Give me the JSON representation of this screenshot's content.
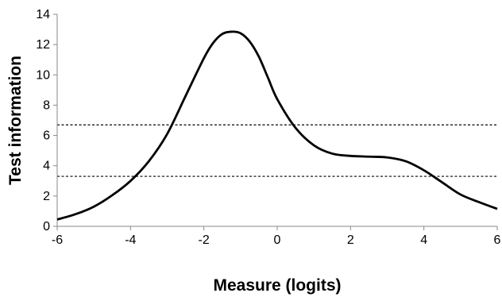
{
  "chart_data": {
    "type": "line",
    "title": "",
    "xlabel": "Measure (logits)",
    "ylabel": "Test information",
    "xlim": [
      -6,
      6
    ],
    "ylim": [
      0,
      14
    ],
    "x_ticks": [
      "-6",
      "-4",
      "-2",
      "0",
      "2",
      "4",
      "6"
    ],
    "y_ticks": [
      "0",
      "2",
      "4",
      "6",
      "8",
      "10",
      "12",
      "14"
    ],
    "grid": false,
    "legend": "none",
    "series": [
      {
        "color": "#000000",
        "style": "solid",
        "x": [
          -6.0,
          -5.5,
          -5.0,
          -4.5,
          -4.0,
          -3.5,
          -3.0,
          -2.5,
          -2.0,
          -1.75,
          -1.5,
          -1.25,
          -1.0,
          -0.75,
          -0.5,
          -0.25,
          0.0,
          0.5,
          1.0,
          1.5,
          2.0,
          2.5,
          3.0,
          3.5,
          4.0,
          4.5,
          5.0,
          5.5,
          6.0
        ],
        "y": [
          0.45,
          0.8,
          1.3,
          2.05,
          3.0,
          4.3,
          6.1,
          8.6,
          11.1,
          12.1,
          12.7,
          12.85,
          12.75,
          12.2,
          11.2,
          9.8,
          8.4,
          6.5,
          5.35,
          4.8,
          4.65,
          4.6,
          4.55,
          4.3,
          3.7,
          2.9,
          2.1,
          1.6,
          1.15
        ]
      }
    ],
    "reference_lines": [
      {
        "y": 6.7,
        "color": "#000000",
        "style": "dashed"
      },
      {
        "y": 3.3,
        "color": "#000000",
        "style": "dashed"
      }
    ]
  }
}
